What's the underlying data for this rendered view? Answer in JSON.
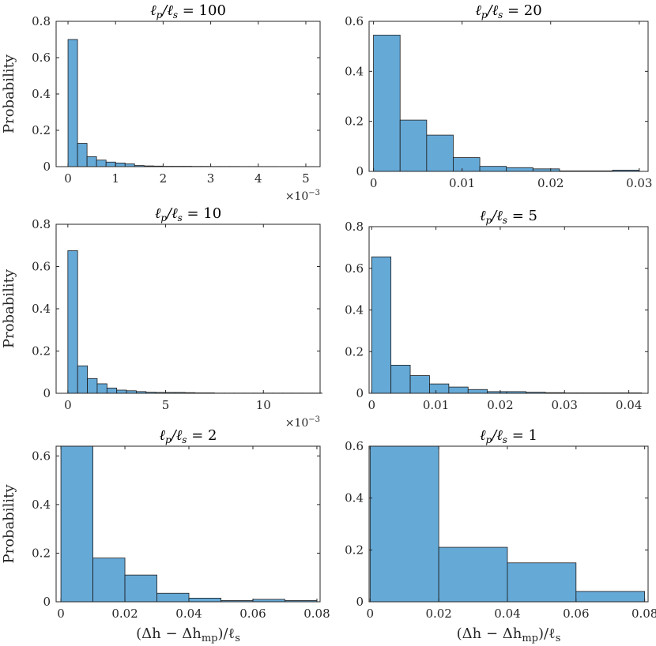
{
  "style": {
    "bar_fill": "#65a9d7",
    "bar_stroke": "#1b1b1b",
    "axis_color": "#262626",
    "background": "#ffffff"
  },
  "chart_data": [
    {
      "type": "bar",
      "title": "ℓp/ℓs = 100",
      "title_parts": {
        "lhs": "ℓ",
        "sub1": "p",
        "mid": "/ℓ",
        "sub2": "s",
        "rhs": " = 100"
      },
      "ylabel": "Probability",
      "xlabel": "",
      "x_exponent": "×10",
      "x_exponent_power": "−3",
      "xlim": [
        -0.00025,
        0.0053
      ],
      "ylim": [
        0,
        0.8
      ],
      "xticks": [
        0,
        1,
        2,
        3,
        4,
        5
      ],
      "xtick_values": [
        0,
        0.001,
        0.002,
        0.003,
        0.004,
        0.005
      ],
      "yticks": [
        "0",
        "0.2",
        "0.4",
        "0.6",
        "0.8"
      ],
      "ytick_values": [
        0,
        0.2,
        0.4,
        0.6,
        0.8
      ],
      "bin_edges_start": 0,
      "bin_width": 0.0002,
      "values": [
        0.7,
        0.128,
        0.055,
        0.036,
        0.025,
        0.02,
        0.015,
        0.006,
        0.004,
        0.003,
        0.002,
        0.002,
        0.002,
        0.0015,
        0.0015,
        0.001,
        0.001,
        0.001,
        0.0008,
        0.0008,
        0.0006,
        0.0006,
        0.0005,
        0.0005,
        0.0005,
        0.0005
      ]
    },
    {
      "type": "bar",
      "title": "ℓp/ℓs = 20",
      "title_parts": {
        "lhs": "ℓ",
        "sub1": "p",
        "mid": "/ℓ",
        "sub2": "s",
        "rhs": " = 20"
      },
      "ylabel": "",
      "xlabel": "",
      "xlim": [
        -0.0005,
        0.031
      ],
      "ylim": [
        0,
        0.6
      ],
      "xticks": [
        "0",
        "0.01",
        "0.02",
        "0.03"
      ],
      "xtick_values": [
        0,
        0.01,
        0.02,
        0.03
      ],
      "yticks": [
        "0",
        "0.2",
        "0.4",
        "0.6"
      ],
      "ytick_values": [
        0,
        0.2,
        0.4,
        0.6
      ],
      "bin_edges_start": 0,
      "bin_width": 0.003,
      "values": [
        0.545,
        0.205,
        0.145,
        0.055,
        0.02,
        0.015,
        0.01,
        0.002,
        0.002,
        0.005
      ]
    },
    {
      "type": "bar",
      "title": "ℓp/ℓs = 10",
      "title_parts": {
        "lhs": "ℓ",
        "sub1": "p",
        "mid": "/ℓ",
        "sub2": "s",
        "rhs": " = 10"
      },
      "ylabel": "Probability",
      "xlabel": "",
      "x_exponent": "×10",
      "x_exponent_power": "−3",
      "xlim": [
        -0.0006,
        0.0129
      ],
      "ylim": [
        0,
        0.8
      ],
      "xticks": [
        "0",
        "5",
        "10"
      ],
      "xtick_values": [
        0,
        0.005,
        0.01
      ],
      "yticks": [
        "0",
        "0.2",
        "0.4",
        "0.6",
        "0.8"
      ],
      "ytick_values": [
        0,
        0.2,
        0.4,
        0.6,
        0.8
      ],
      "bin_edges_start": 0,
      "bin_width": 0.0005,
      "values": [
        0.675,
        0.13,
        0.07,
        0.045,
        0.025,
        0.015,
        0.012,
        0.008,
        0.005,
        0.004,
        0.004,
        0.004,
        0.003,
        0.002,
        0.002,
        0.001,
        0.001,
        0.001,
        0.001,
        0.001,
        0.001,
        0.001,
        0.001,
        0.001,
        0.001,
        0.001
      ]
    },
    {
      "type": "bar",
      "title": "ℓp/ℓs = 5",
      "title_parts": {
        "lhs": "ℓ",
        "sub1": "p",
        "mid": "/ℓ",
        "sub2": "s",
        "rhs": " = 5"
      },
      "ylabel": "",
      "xlabel": "",
      "xlim": [
        -0.0004,
        0.043
      ],
      "ylim": [
        0,
        0.8
      ],
      "xticks": [
        "0",
        "0.01",
        "0.02",
        "0.03",
        "0.04"
      ],
      "xtick_values": [
        0,
        0.01,
        0.02,
        0.03,
        0.04
      ],
      "yticks": [
        "0",
        "0.2",
        "0.4",
        "0.6",
        "0.8"
      ],
      "ytick_values": [
        0,
        0.2,
        0.4,
        0.6,
        0.8
      ],
      "bin_edges_start": 0,
      "bin_width": 0.003,
      "values": [
        0.655,
        0.135,
        0.085,
        0.045,
        0.03,
        0.018,
        0.008,
        0.008,
        0.005,
        0.003,
        0.002,
        0.002,
        0.002,
        0.002
      ]
    },
    {
      "type": "bar",
      "title": "ℓp/ℓs = 2",
      "title_parts": {
        "lhs": "ℓ",
        "sub1": "p",
        "mid": "/ℓ",
        "sub2": "s",
        "rhs": " = 2"
      },
      "ylabel": "Probability",
      "xlabel": "(Δh − Δhmp)/ℓs",
      "xlim": [
        -0.0015,
        0.081
      ],
      "ylim": [
        0,
        0.64
      ],
      "xticks": [
        "0",
        "0.02",
        "0.04",
        "0.06",
        "0.08"
      ],
      "xtick_values": [
        0,
        0.02,
        0.04,
        0.06,
        0.08
      ],
      "yticks": [
        "0",
        "0.2",
        "0.4",
        "0.6"
      ],
      "ytick_values": [
        0,
        0.2,
        0.4,
        0.6
      ],
      "bin_edges_start": 0,
      "bin_width": 0.01,
      "values": [
        0.64,
        0.18,
        0.11,
        0.035,
        0.015,
        0.005,
        0.01,
        0.005
      ]
    },
    {
      "type": "bar",
      "title": "ℓp/ℓs = 1",
      "title_parts": {
        "lhs": "ℓ",
        "sub1": "p",
        "mid": "/ℓ",
        "sub2": "s",
        "rhs": " = 1"
      },
      "ylabel": "",
      "xlabel": "(Δh − Δhmp)/ℓs",
      "xlim": [
        -0.0003,
        0.081
      ],
      "ylim": [
        0,
        0.6
      ],
      "xticks": [
        "0",
        "0.02",
        "0.04",
        "0.06",
        "0.08"
      ],
      "xtick_values": [
        0,
        0.02,
        0.04,
        0.06,
        0.08
      ],
      "yticks": [
        "0",
        "0.2",
        "0.4",
        "0.6"
      ],
      "ytick_values": [
        0,
        0.2,
        0.4,
        0.6
      ],
      "bin_edges_start": 0,
      "bin_width": 0.02,
      "values": [
        0.6,
        0.21,
        0.15,
        0.04
      ]
    }
  ]
}
